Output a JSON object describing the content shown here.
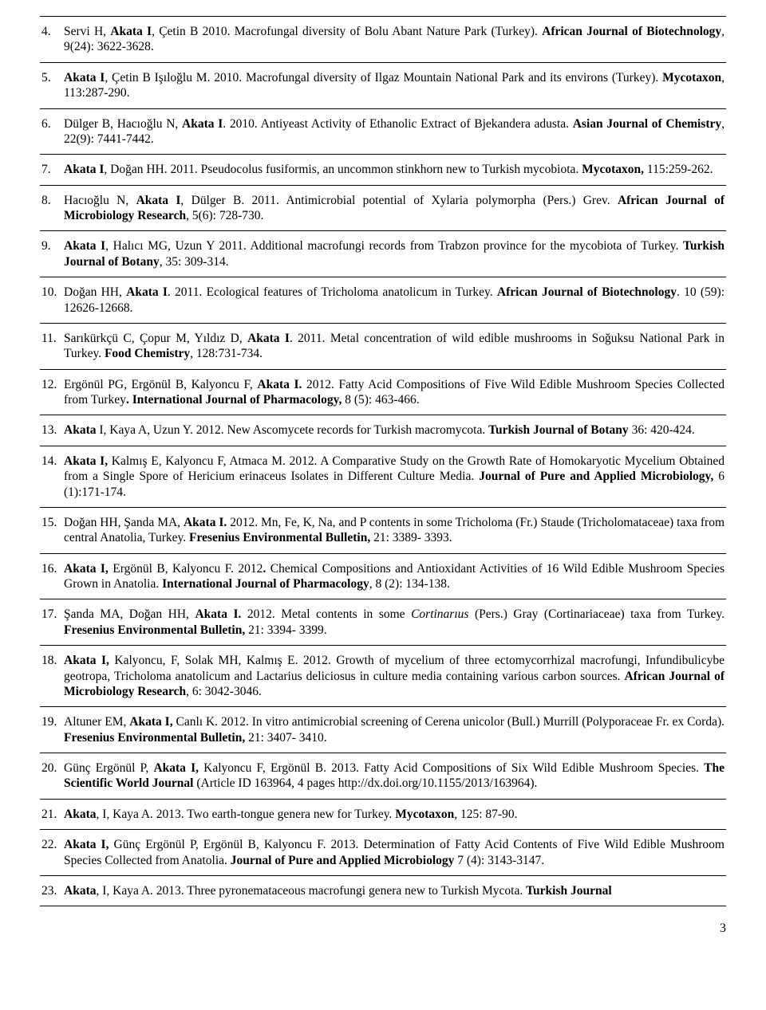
{
  "entries": [
    {
      "n": "4.",
      "html": "Servi H, <b>Akata I</b>, Çetin B 2010. Macrofungal diversity of Bolu Abant Nature Park (Turkey). <b>African Journal of Biotechnology</b>, 9(24): 3622-3628."
    },
    {
      "n": "5.",
      "html": "<b>Akata I</b>, Çetin B Işıloğlu M. 2010. Macrofungal diversity of Ilgaz Mountain National Park and its environs (Turkey). <b>Mycotaxon</b>, 113:287-290."
    },
    {
      "n": "6.",
      "html": "Dülger B, Hacıoğlu N, <b>Akata I</b>. 2010. Antiyeast Activity of Ethanolic Extract of Bjekandera adusta. <b>Asian Journal of Chemistry</b>, 22(9): 7441-7442."
    },
    {
      "n": "7.",
      "html": "<b>Akata I</b>, Doğan HH. 2011. Pseudocolus fusiformis, an uncommon stinkhorn new to Turkish mycobiota. <b>Mycotaxon,</b> 115:259-262."
    },
    {
      "n": "8.",
      "html": "Hacıoğlu N, <b>Akata I</b>, Dülger B. 2011. Antimicrobial potential of Xylaria polymorpha (Pers.) Grev. <b>African Journal of Microbiology Research</b>, 5(6): 728-730."
    },
    {
      "n": "9.",
      "html": "<b>Akata I</b>, Halıcı MG, Uzun Y 2011. Additional macrofungi records from Trabzon province for the mycobiota of Turkey. <b>Turkish Journal of Botany</b>, 35: 309-314."
    },
    {
      "n": "10.",
      "html": "Doğan HH, <b>Akata I</b>. 2011. Ecological features of Tricholoma anatolicum in Turkey. <b>African Journal of Biotechnology</b>. 10 (59): 12626-12668."
    },
    {
      "n": "11.",
      "html": "Sarıkürkçü C, Çopur M, Yıldız D, <b>Akata I</b>. 2011. Metal concentration of wild edible mushrooms in Soğuksu National Park in Turkey. <b>Food Chemistry</b>, 128:731-734."
    },
    {
      "n": "12.",
      "html": "Ergönül PG, Ergönül B, Kalyoncu F, <b>Akata I.</b> 2012. Fatty Acid Compositions of Five Wild Edible Mushroom Species Collected from Turkey<b>. International Journal of Pharmacology,</b> 8 (5): 463-466."
    },
    {
      "n": "13.",
      "html": "<b>Akata</b> I, Kaya A, Uzun Y. 2012. New Ascomycete records for Turkish macromycota. <b>Turkish Journal of Botany</b> 36: 420-424."
    },
    {
      "n": "14.",
      "html": "<b>Akata I,</b> Kalmış E, Kalyoncu F, Atmaca M. 2012. A Comparative Study on the Growth Rate of Homokaryotic Mycelium Obtained from a Single Spore of Hericium erinaceus Isolates in Different Culture Media. <b>Journal of Pure and Applied Microbiology,</b> 6 (1):171-174."
    },
    {
      "n": "15.",
      "html": "Doğan HH, Şanda MA, <b>Akata I.</b> 2012. Mn, Fe, K, Na, and P contents in some Tricholoma (Fr.) Staude (Tricholomataceae) taxa from central Anatolia, Turkey. <b>Fresenius Environmental Bulletin,</b> 21: 3389- 3393."
    },
    {
      "n": "16.",
      "html": "<b>Akata I,</b> Ergönül B, Kalyoncu F. 2012<b>.</b> Chemical Compositions and Antioxidant Activities of 16 Wild Edible Mushroom Species Grown in Anatolia. <b>International Journal of Pharmacology</b>, 8 (2): 134-138."
    },
    {
      "n": "17.",
      "html": "Şanda MA, Doğan HH, <b>Akata I.</b> 2012. Metal contents in some <i>Cortinarıus</i> (Pers.) Gray (Cortinariaceae) taxa from Turkey. <b>Fresenius Environmental Bulletin,</b> 21: 3394- 3399."
    },
    {
      "n": "18.",
      "html": "<b>Akata I,</b> Kalyoncu, F, Solak MH, Kalmış E. 2012. Growth of mycelium of three ectomycorrhizal macrofungi, Infundibulicybe geotropa, Tricholoma anatolicum and Lactarius deliciosus in culture media containing various carbon sources. <b>African Journal of Microbiology Research</b>, 6: 3042-3046."
    },
    {
      "n": "19.",
      "html": "Altuner EM, <b>Akata I,</b> Canlı K. 2012. In vitro antimicrobial screening of Cerena unicolor (Bull.) Murrill (Polyporaceae Fr. ex Corda). <b>Fresenius Environmental Bulletin,</b> 21: 3407- 3410."
    },
    {
      "n": "20.",
      "html": "Günç Ergönül P, <b>Akata I,</b> Kalyoncu F, Ergönül B. 2013. Fatty Acid Compositions of Six Wild Edible Mushroom Species. <b>The Scientific World Journal</b> (Article ID 163964, 4 pages http://dx.doi.org/10.1155/2013/163964)."
    },
    {
      "n": "21.",
      "html": "<b>Akata</b>, I, Kaya A. 2013. Two earth-tongue genera new for Turkey. <b>Mycotaxon</b>, 125: 87-90."
    },
    {
      "n": "22.",
      "html": "<b>Akata I,</b> Günç Ergönül P, Ergönül B, Kalyoncu F. 2013. Determination of Fatty Acid Contents of Five Wild Edible Mushroom Species Collected from Anatolia. <b>Journal of Pure and Applied Microbiology</b> 7 (4): 3143-3147."
    },
    {
      "n": "23.",
      "html": "<b>Akata</b>, I, Kaya A. 2013. Three pyronemataceous macrofungi genera new to Turkish Mycota. <b>Turkish Journal</b>"
    }
  ],
  "page_number": "3"
}
